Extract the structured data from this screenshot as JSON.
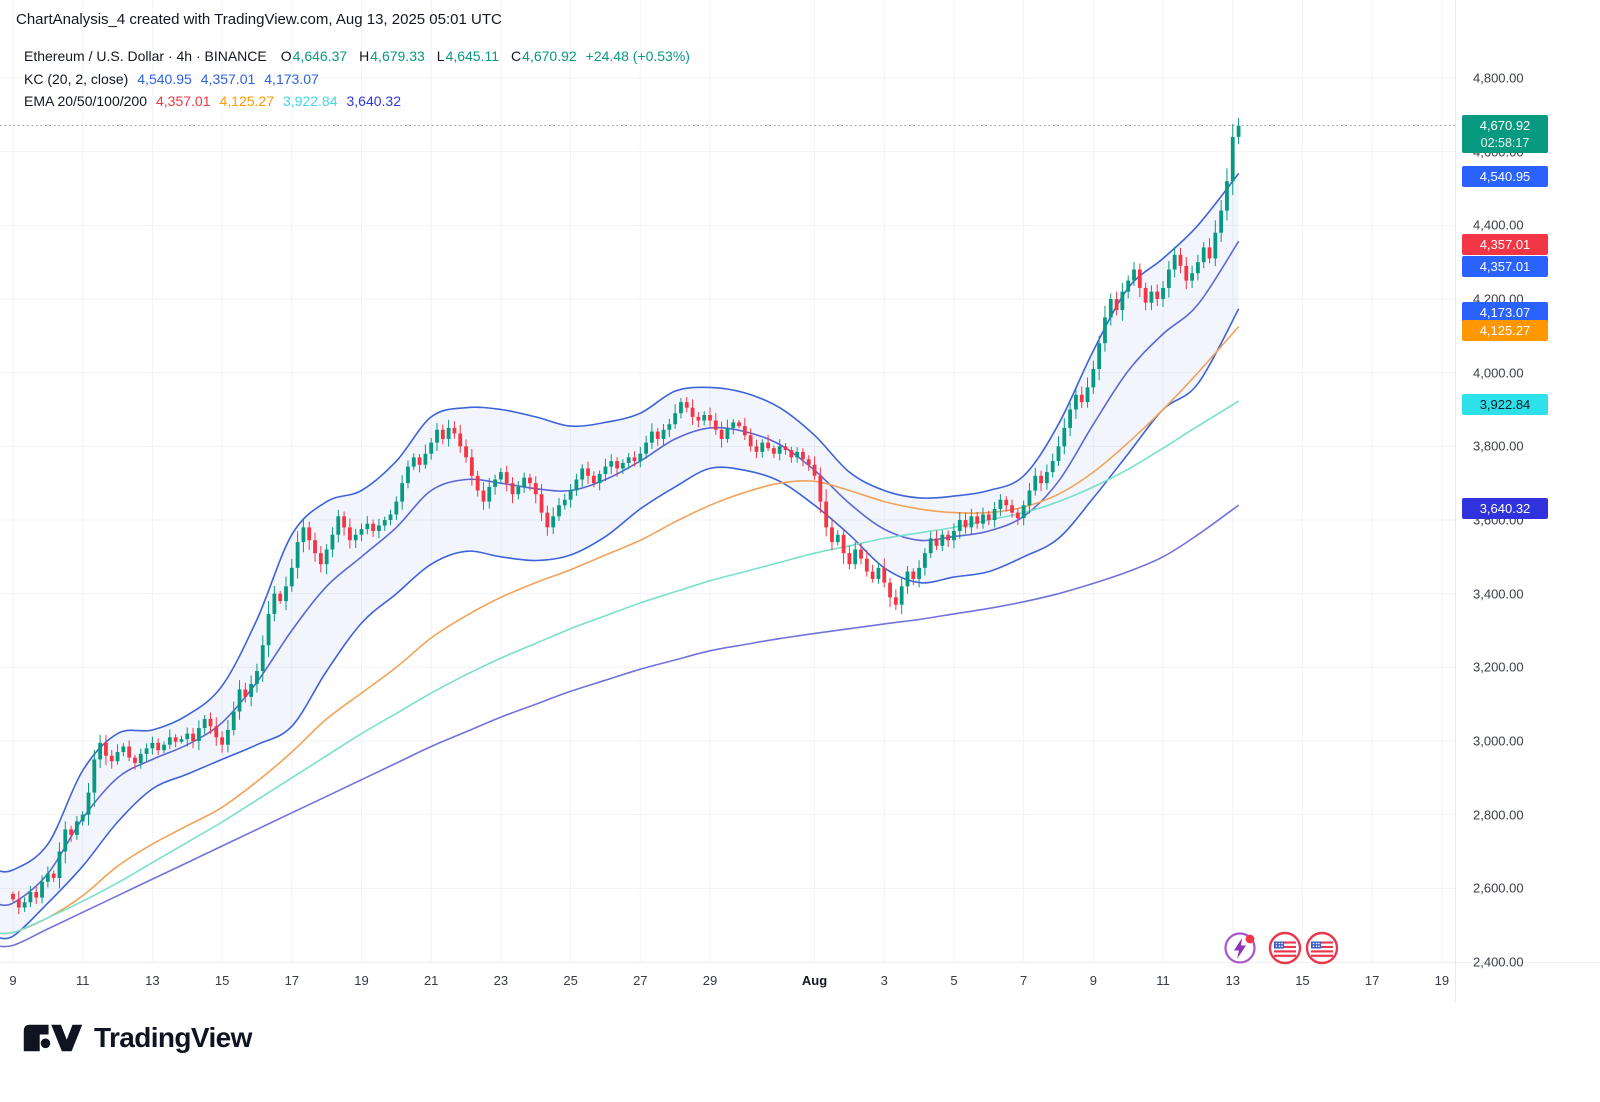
{
  "header": {
    "title": "ChartAnalysis_4 created with TradingView.com, Aug 13, 2025 05:01 UTC"
  },
  "legend": {
    "symbol_title": "Ethereum / U.S. Dollar · 4h · BINANCE",
    "o_label": "O",
    "o": "4,646.37",
    "h_label": "H",
    "h": "4,679.33",
    "l_label": "L",
    "l": "4,645.11",
    "c_label": "C",
    "c": "4,670.92",
    "change": "+24.48 (+0.53%)",
    "kc_title": "KC (20, 2, close)",
    "kc1": "4,540.95",
    "kc2": "4,357.01",
    "kc3": "4,173.07",
    "ema_title": "EMA 20/50/100/200",
    "ema1": "4,357.01",
    "ema2": "4,125.27",
    "ema3": "3,922.84",
    "ema4": "3,640.32"
  },
  "footer": {
    "brand": "TradingView"
  },
  "chart_data": {
    "type": "candlestick",
    "symbol": "Ethereum / U.S. Dollar",
    "exchange": "BINANCE",
    "interval": "4h",
    "ohlc_legend": {
      "open": 4646.37,
      "high": 4679.33,
      "low": 4645.11,
      "close": 4670.92,
      "change": 24.48,
      "change_pct": 0.53
    },
    "last_price": 4670.92,
    "countdown": "02:58:17",
    "ylim": [
      2400,
      4800
    ],
    "y_ticks": [
      4800,
      4600,
      4400,
      4200,
      4000,
      3800,
      3600,
      3400,
      3200,
      3000,
      2800,
      2600,
      2400
    ],
    "y_tick_labels": [
      "4,800.00",
      "4,600.00",
      "4,400.00",
      "4,200.00",
      "4,000.00",
      "3,800.00",
      "3,600.00",
      "3,400.00",
      "3,200.00",
      "3,000.00",
      "2,800.00",
      "2,600.00",
      "2,400.00"
    ],
    "x_labels": [
      {
        "text": "9",
        "day": 0
      },
      {
        "text": "11",
        "day": 2
      },
      {
        "text": "13",
        "day": 4
      },
      {
        "text": "15",
        "day": 6
      },
      {
        "text": "17",
        "day": 8
      },
      {
        "text": "19",
        "day": 10
      },
      {
        "text": "21",
        "day": 12
      },
      {
        "text": "23",
        "day": 14
      },
      {
        "text": "25",
        "day": 16
      },
      {
        "text": "27",
        "day": 18
      },
      {
        "text": "29",
        "day": 20
      },
      {
        "text": "Aug",
        "day": 23,
        "bold": true
      },
      {
        "text": "3",
        "day": 25
      },
      {
        "text": "5",
        "day": 27
      },
      {
        "text": "7",
        "day": 29
      },
      {
        "text": "9",
        "day": 31
      },
      {
        "text": "11",
        "day": 33
      },
      {
        "text": "13",
        "day": 35
      },
      {
        "text": "15",
        "day": 37
      },
      {
        "text": "17",
        "day": 39
      },
      {
        "text": "19",
        "day": 41
      }
    ],
    "grid": true,
    "candle_start": "Jul 9, 00:00 UTC",
    "candles_per_day": 6,
    "candles_4h_close": [
      2570,
      2548,
      2562,
      2590,
      2575,
      2618,
      2640,
      2628,
      2700,
      2760,
      2745,
      2782,
      2800,
      2860,
      2950,
      2995,
      2960,
      2945,
      2970,
      2985,
      2955,
      2940,
      2965,
      2980,
      2995,
      2975,
      2990,
      3010,
      2998,
      3005,
      3020,
      3000,
      3035,
      3060,
      3040,
      3010,
      2990,
      3030,
      3080,
      3140,
      3120,
      3155,
      3190,
      3260,
      3345,
      3400,
      3380,
      3420,
      3470,
      3540,
      3580,
      3545,
      3510,
      3480,
      3520,
      3560,
      3610,
      3580,
      3545,
      3560,
      3575,
      3590,
      3570,
      3585,
      3600,
      3615,
      3650,
      3700,
      3745,
      3770,
      3750,
      3780,
      3810,
      3845,
      3820,
      3850,
      3835,
      3800,
      3770,
      3720,
      3680,
      3650,
      3690,
      3710,
      3730,
      3700,
      3670,
      3690,
      3715,
      3700,
      3670,
      3620,
      3580,
      3610,
      3640,
      3655,
      3680,
      3710,
      3740,
      3720,
      3700,
      3725,
      3745,
      3760,
      3740,
      3755,
      3770,
      3760,
      3780,
      3810,
      3840,
      3820,
      3845,
      3860,
      3890,
      3920,
      3905,
      3880,
      3870,
      3885,
      3870,
      3845,
      3820,
      3850,
      3865,
      3855,
      3830,
      3800,
      3785,
      3810,
      3795,
      3780,
      3800,
      3790,
      3770,
      3785,
      3765,
      3750,
      3720,
      3650,
      3580,
      3540,
      3560,
      3510,
      3480,
      3520,
      3495,
      3460,
      3440,
      3470,
      3430,
      3390,
      3370,
      3420,
      3460,
      3440,
      3470,
      3510,
      3550,
      3530,
      3560,
      3545,
      3570,
      3600,
      3580,
      3610,
      3590,
      3615,
      3600,
      3630,
      3655,
      3640,
      3620,
      3605,
      3640,
      3680,
      3720,
      3700,
      3730,
      3760,
      3800,
      3850,
      3900,
      3940,
      3920,
      3960,
      4010,
      4080,
      4150,
      4200,
      4170,
      4220,
      4250,
      4280,
      4230,
      4190,
      4220,
      4200,
      4230,
      4280,
      4320,
      4290,
      4250,
      4270,
      4300,
      4340,
      4310,
      4380,
      4440,
      4520,
      4640,
      4670.92
    ],
    "overlays": [
      {
        "name": "KC Upper (20,2)",
        "end_value": 4540.95,
        "color_key": "kc_band",
        "daily": [
          2650,
          2720,
          2920,
          3020,
          3030,
          3070,
          3150,
          3330,
          3560,
          3650,
          3680,
          3760,
          3880,
          3905,
          3900,
          3880,
          3855,
          3865,
          3890,
          3950,
          3960,
          3945,
          3905,
          3830,
          3730,
          3680,
          3660,
          3665,
          3680,
          3720,
          3860,
          4060,
          4230,
          4310,
          4400,
          4540.95
        ]
      },
      {
        "name": "KC Basis (EMA 20)",
        "end_value": 4357.01,
        "color_key": "kc_basis",
        "daily": [
          2560,
          2640,
          2790,
          2900,
          2950,
          2990,
          3050,
          3160,
          3300,
          3420,
          3500,
          3580,
          3680,
          3710,
          3700,
          3685,
          3680,
          3710,
          3760,
          3820,
          3850,
          3840,
          3805,
          3735,
          3645,
          3575,
          3545,
          3555,
          3570,
          3610,
          3705,
          3860,
          4005,
          4105,
          4185,
          4357.01
        ]
      },
      {
        "name": "KC Lower (20,2)",
        "end_value": 4173.07,
        "color_key": "kc_band",
        "daily": [
          2470,
          2560,
          2660,
          2780,
          2870,
          2910,
          2950,
          2990,
          3040,
          3190,
          3320,
          3400,
          3480,
          3515,
          3500,
          3490,
          3505,
          3555,
          3630,
          3690,
          3740,
          3735,
          3705,
          3640,
          3560,
          3470,
          3430,
          3445,
          3460,
          3500,
          3550,
          3660,
          3780,
          3900,
          3970,
          4173.07
        ]
      },
      {
        "name": "EMA 50",
        "end_value": 4125.27,
        "color_key": "ema50",
        "daily": [
          2480,
          2520,
          2580,
          2660,
          2720,
          2770,
          2820,
          2890,
          2970,
          3060,
          3130,
          3200,
          3280,
          3340,
          3390,
          3430,
          3465,
          3505,
          3545,
          3595,
          3640,
          3675,
          3700,
          3705,
          3680,
          3650,
          3630,
          3620,
          3620,
          3635,
          3670,
          3730,
          3810,
          3900,
          4000,
          4125.27
        ]
      },
      {
        "name": "EMA 100",
        "end_value": 3922.84,
        "color_key": "ema100",
        "daily": [
          2480,
          2520,
          2565,
          2615,
          2670,
          2725,
          2780,
          2840,
          2900,
          2960,
          3020,
          3075,
          3130,
          3180,
          3225,
          3265,
          3305,
          3340,
          3375,
          3405,
          3435,
          3460,
          3485,
          3510,
          3530,
          3550,
          3565,
          3580,
          3600,
          3620,
          3650,
          3690,
          3738,
          3795,
          3855,
          3922.84
        ]
      },
      {
        "name": "EMA 200",
        "end_value": 3640.32,
        "color_key": "ema200",
        "daily": [
          2445,
          2490,
          2535,
          2580,
          2625,
          2670,
          2715,
          2760,
          2805,
          2850,
          2895,
          2940,
          2985,
          3025,
          3065,
          3100,
          3135,
          3165,
          3195,
          3220,
          3245,
          3262,
          3278,
          3292,
          3305,
          3318,
          3330,
          3345,
          3360,
          3378,
          3400,
          3428,
          3460,
          3500,
          3560,
          3640.32
        ]
      }
    ],
    "price_badges": [
      {
        "text": "4,670.92",
        "line2": "02:58:17",
        "price": 4670.92,
        "bg": "#089981",
        "fg": "#FFFFFF"
      },
      {
        "text": "4,540.95",
        "price": 4540.95,
        "bg": "#2962FF",
        "fg": "#FFFFFF"
      },
      {
        "text": "4,357.01",
        "price": 4357.01,
        "bg": "#F23645",
        "fg": "#FFFFFF",
        "offset": 0
      },
      {
        "text": "4,357.01",
        "price": 4357.01,
        "bg": "#2962FF",
        "fg": "#FFFFFF",
        "offset": 22
      },
      {
        "text": "4,173.07",
        "price": 4173.07,
        "bg": "#2962FF",
        "fg": "#FFFFFF"
      },
      {
        "text": "4,125.27",
        "price": 4125.27,
        "bg": "#FF9800",
        "fg": "#FFFFFF"
      },
      {
        "text": "3,922.84",
        "price": 3922.84,
        "bg": "#2EE0E8",
        "fg": "#0C1B2A"
      },
      {
        "text": "3,640.32",
        "price": 3640.32,
        "bg": "#3032DC",
        "fg": "#FFFFFF"
      }
    ],
    "markers": [
      {
        "kind": "flash-event",
        "day": 35.2
      },
      {
        "kind": "us-flag-event",
        "day": 36.5
      },
      {
        "kind": "us-flag-event",
        "day": 37.55
      }
    ],
    "colors": {
      "up": "#089981",
      "down": "#F23645",
      "kc_band": "#3E63D9",
      "kc_basis": "#5C66D4",
      "kc_fill": "rgba(62,99,217,0.065)",
      "ema50": "#F2A359",
      "ema100": "#79E0CB",
      "ema200": "#7272DB",
      "text": "#131722",
      "ohlc_up": "#089981",
      "kc_value": "#2E62E0",
      "ema_value_1": "#F23645",
      "ema_value_2": "#FF9800",
      "ema_value_3": "#45D6E0",
      "ema_value_4": "#3038E0",
      "grid": "#F1F3F7",
      "price_line": "#9598A1"
    }
  }
}
